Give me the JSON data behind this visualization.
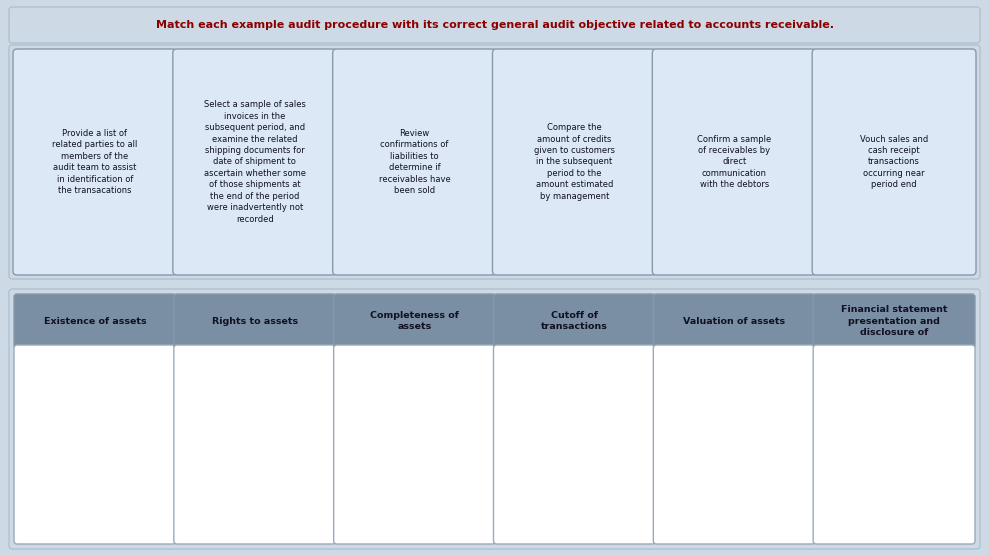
{
  "title": "Match each example audit procedure with its correct general audit objective related to accounts receivable.",
  "title_color": "#8B0000",
  "outer_bg_color": "#cdd9e5",
  "card_bg_color": "#dce8f5",
  "card_border_color": "#8899aa",
  "header_bg_color": "#7a8fa3",
  "header_text_color": "#111122",
  "drop_area_bg_color": "#ffffff",
  "drop_area_border_color": "#9aabb8",
  "procedure_cards": [
    "Provide a list of\nrelated parties to all\nmembers of the\naudit team to assist\nin identification of\nthe transacations",
    "Select a sample of sales\ninvoices in the\nsubsequent period, and\nexamine the related\nshipping documents for\ndate of shipment to\nascertain whether some\nof those shipments at\nthe end of the period\nwere inadvertently not\nrecorded",
    "Review\nconfirmations of\nliabilities to\ndetermine if\nreceivables have\nbeen sold",
    "Compare the\namount of credits\ngiven to customers\nin the subsequent\nperiod to the\namount estimated\nby management",
    "Confirm a sample\nof receivables by\ndirect\ncommunication\nwith the debtors",
    "Vouch sales and\ncash receipt\ntransactions\noccurring near\nperiod end"
  ],
  "objective_headers": [
    "Existence of assets",
    "Rights to assets",
    "Completeness of\nassets",
    "Cutoff of\ntransactions",
    "Valuation of assets",
    "Financial statement\npresentation and\ndisclosure of"
  ],
  "fig_width": 9.89,
  "fig_height": 5.56,
  "dpi": 100
}
